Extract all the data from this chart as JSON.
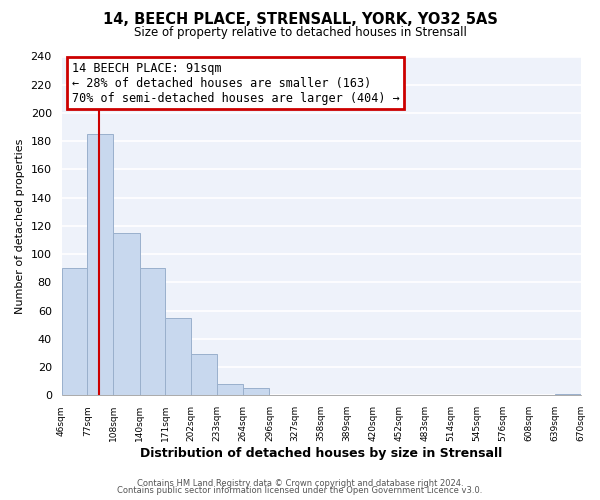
{
  "title": "14, BEECH PLACE, STRENSALL, YORK, YO32 5AS",
  "subtitle": "Size of property relative to detached houses in Strensall",
  "xlabel": "Distribution of detached houses by size in Strensall",
  "ylabel": "Number of detached properties",
  "bar_edges": [
    46,
    77,
    108,
    140,
    171,
    202,
    233,
    264,
    296,
    327,
    358,
    389,
    420,
    452,
    483,
    514,
    545,
    576,
    608,
    639,
    670
  ],
  "bar_heights": [
    90,
    185,
    115,
    90,
    55,
    29,
    8,
    5,
    0,
    0,
    0,
    0,
    0,
    0,
    0,
    0,
    0,
    0,
    0,
    1
  ],
  "bar_color": "#c8d8ee",
  "bar_edge_color": "#9ab0cc",
  "property_line_x": 91,
  "property_line_color": "#cc0000",
  "ylim": [
    0,
    240
  ],
  "yticks": [
    0,
    20,
    40,
    60,
    80,
    100,
    120,
    140,
    160,
    180,
    200,
    220,
    240
  ],
  "annotation_title": "14 BEECH PLACE: 91sqm",
  "annotation_line1": "← 28% of detached houses are smaller (163)",
  "annotation_line2": "70% of semi-detached houses are larger (404) →",
  "annotation_box_color": "#ffffff",
  "annotation_box_edge_color": "#cc0000",
  "footer1": "Contains HM Land Registry data © Crown copyright and database right 2024.",
  "footer2": "Contains public sector information licensed under the Open Government Licence v3.0.",
  "background_color": "#eef2fa",
  "grid_color": "#ffffff",
  "plot_bg_color": "#eef2fa"
}
